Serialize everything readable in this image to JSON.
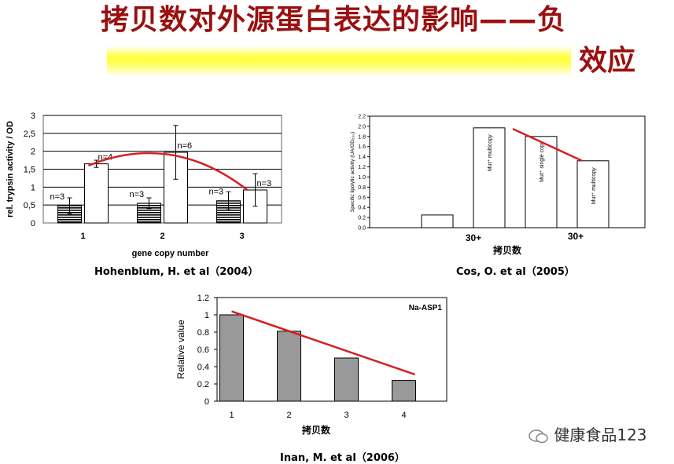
{
  "slide": {
    "title_line1": "拷贝数对外源蛋白表达的影响——负",
    "title_line2": "效应",
    "watermark": "健康食品123"
  },
  "chart_data": [
    {
      "id": "hohenblum",
      "type": "bar",
      "caption": "Hohenblum, H. et al（2004）",
      "xlabel": "gene copy number",
      "ylabel": "rel. trypsin activity / OD",
      "ylim": [
        0,
        3
      ],
      "yticks": [
        "0",
        "0,5",
        "1",
        "1,5",
        "2",
        "2,5",
        "3"
      ],
      "categories": [
        "1",
        "2",
        "3"
      ],
      "series": [
        {
          "style": "hatched",
          "values": [
            0.48,
            0.55,
            0.62
          ],
          "errors": [
            0.22,
            0.15,
            0.25
          ],
          "labels": [
            "n=3",
            "n=3",
            "n=3"
          ]
        },
        {
          "style": "white",
          "values": [
            1.65,
            1.97,
            0.92
          ],
          "errors": [
            0.1,
            0.75,
            0.45
          ],
          "labels": [
            "n=4",
            "n=6",
            "n=3"
          ]
        }
      ],
      "trend_color": "#d42020",
      "grid": true
    },
    {
      "id": "cos",
      "type": "bar",
      "caption": "Cos, O. et al（2005）",
      "xlabel": "拷贝数",
      "ylabel": "Specific lipolytic activity (UA/OD₆₀₀)",
      "ylim": [
        0,
        2.2
      ],
      "yticks": [
        "0.0",
        "0.2",
        "0.4",
        "0.6",
        "0.8",
        "1.0",
        "1.2",
        "1.4",
        "1.6",
        "1.8",
        "2.0",
        "2.2"
      ],
      "values": [
        0.25,
        1.97,
        1.8,
        1.32
      ],
      "bar_labels": [
        "",
        "Mut⁺ multicopy",
        "Mut⁺ single copy",
        "Mut⁺ multicopy"
      ],
      "group_labels": [
        "30+",
        "30+"
      ],
      "trend_color": "#d42020"
    },
    {
      "id": "inan",
      "type": "bar",
      "caption": "Inan, M. et al（2006）",
      "xlabel": "拷贝数",
      "ylabel": "Relative value",
      "legend": "Na-ASP1",
      "ylim": [
        0,
        1.2
      ],
      "yticks": [
        "0",
        "0.2",
        "0.4",
        "0.6",
        "0.8",
        "1",
        "1.2"
      ],
      "categories": [
        "1",
        "2",
        "3",
        "4"
      ],
      "values": [
        1.0,
        0.81,
        0.5,
        0.24
      ],
      "bar_color": "#999999",
      "trend_color": "#d42020"
    }
  ]
}
